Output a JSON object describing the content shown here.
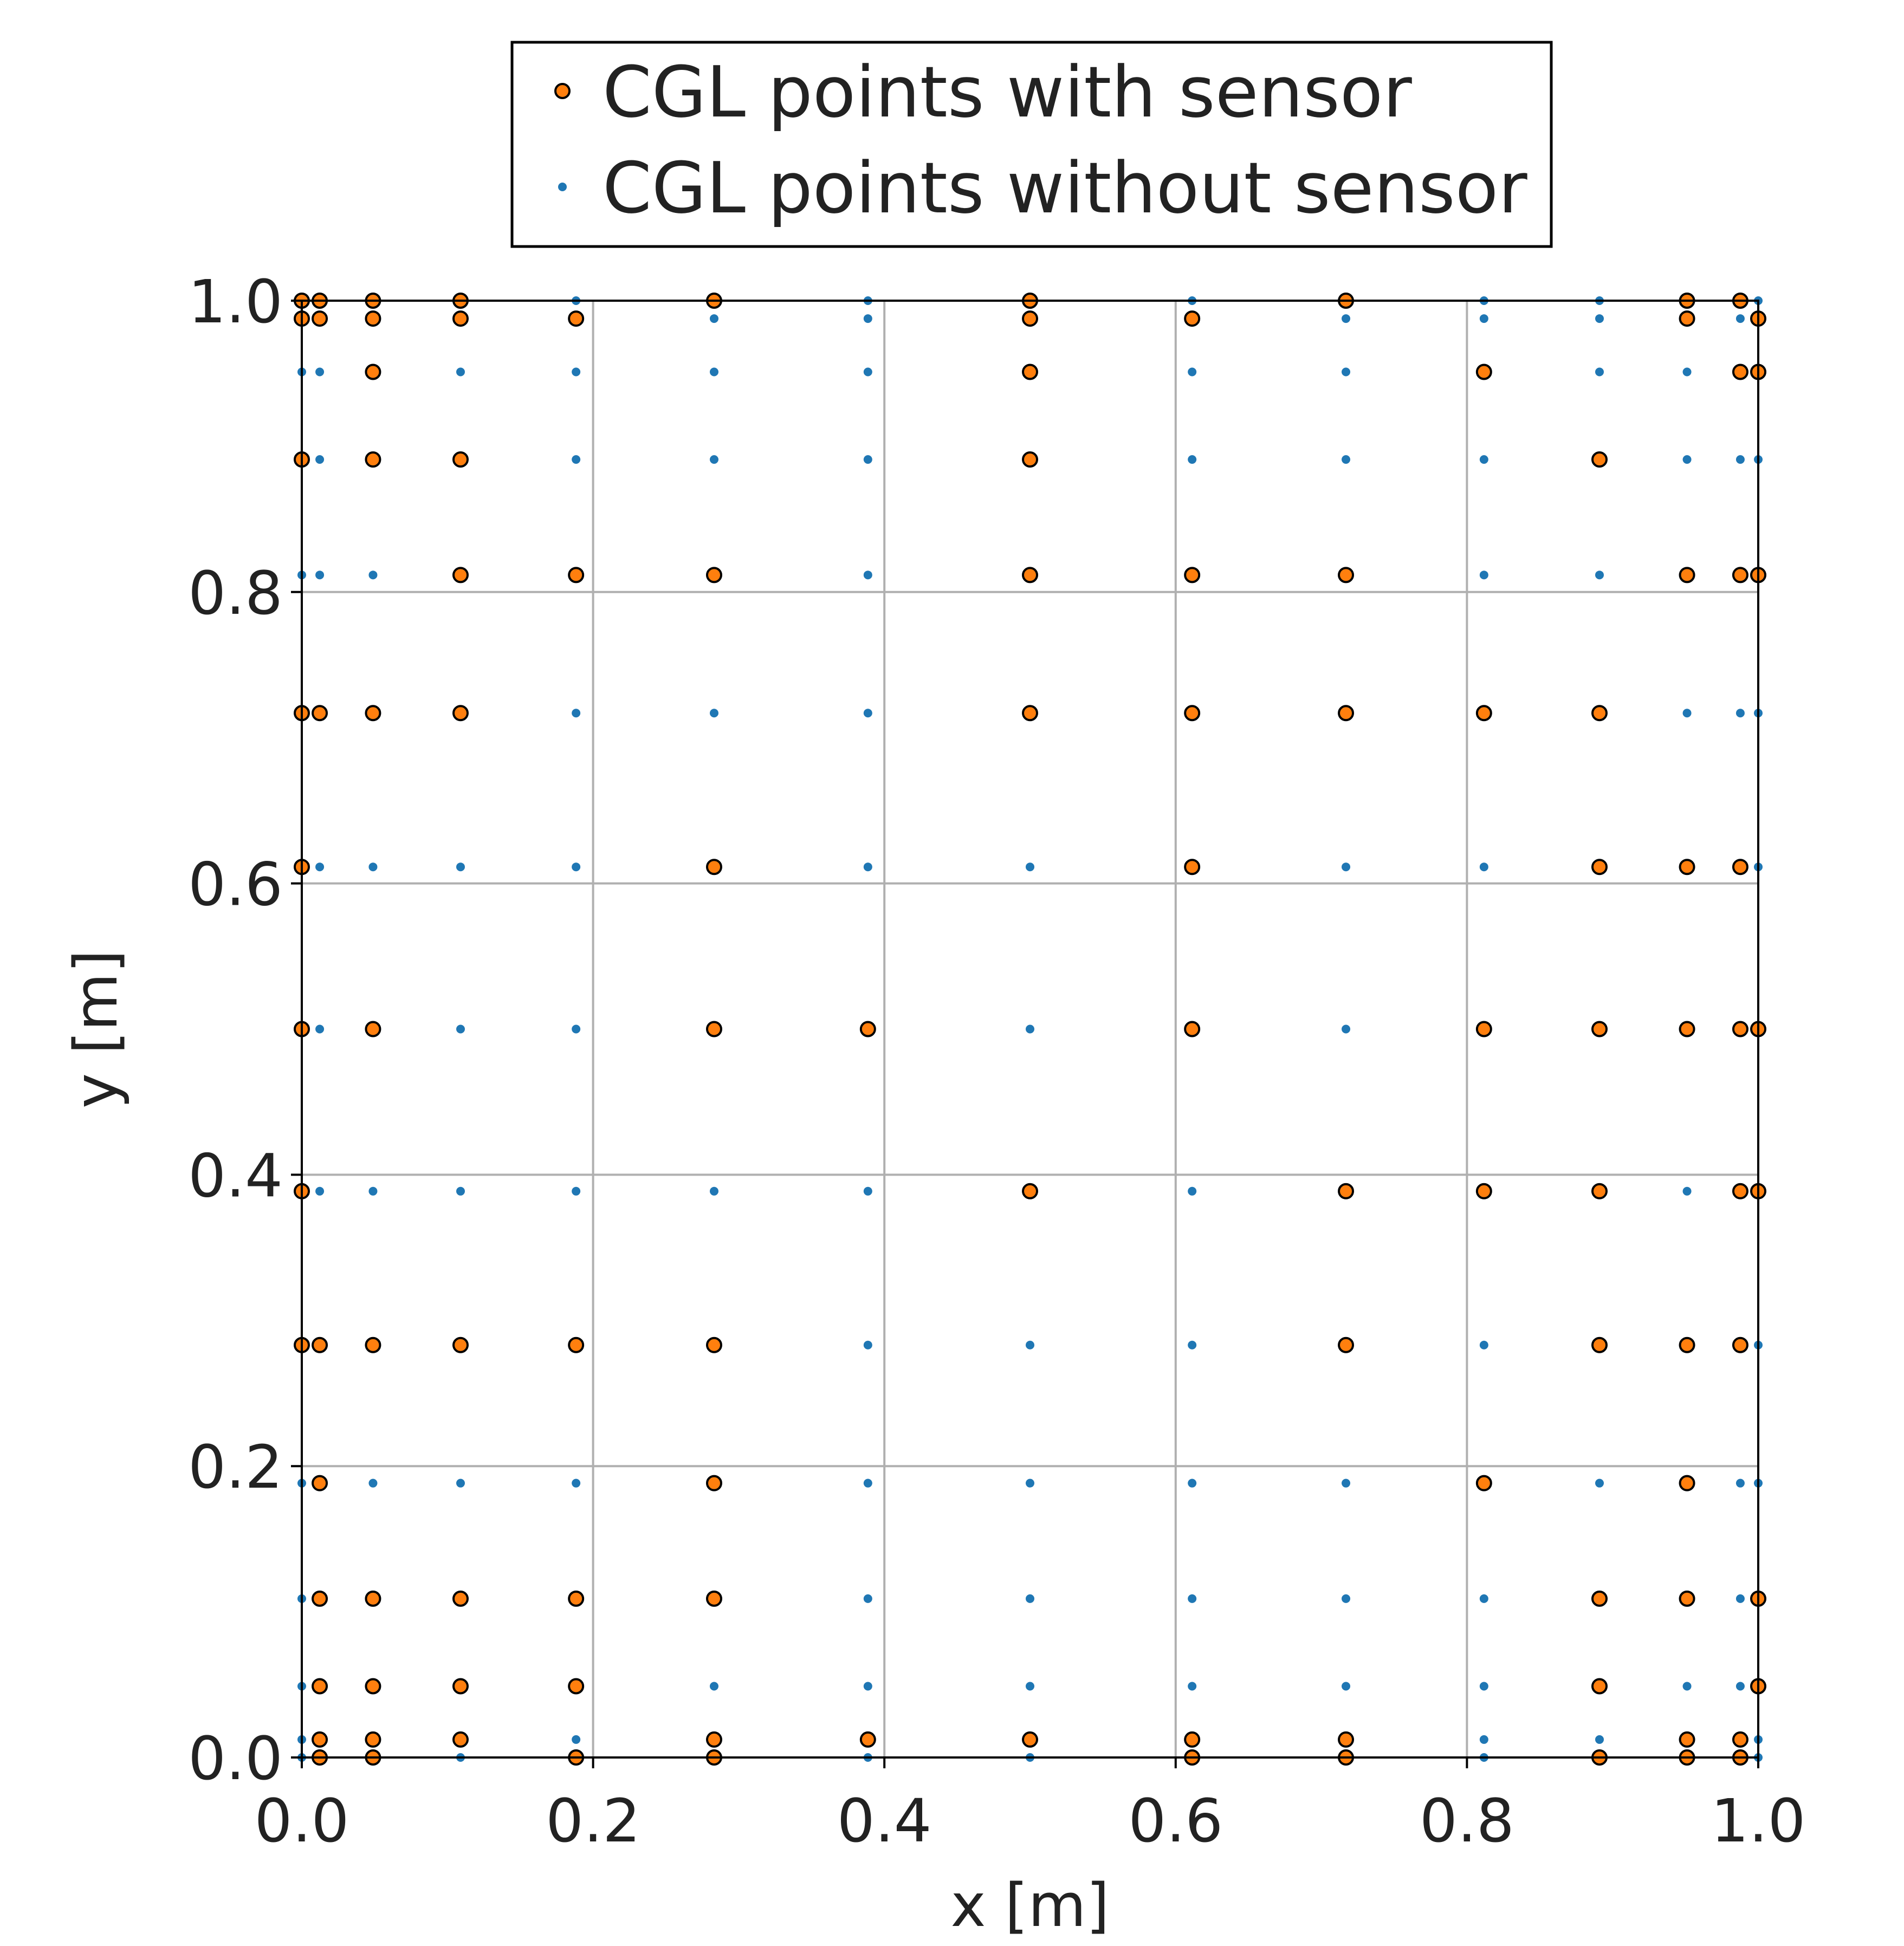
{
  "chart_data": {
    "type": "scatter",
    "title": "",
    "xlabel": "x [m]",
    "ylabel": "y [m]",
    "xlim": [
      0.0,
      1.0
    ],
    "ylim": [
      0.0,
      1.0
    ],
    "x_ticks": [
      "0.0",
      "0.2",
      "0.4",
      "0.6",
      "0.8",
      "1.0"
    ],
    "y_ticks": [
      "0.0",
      "0.2",
      "0.4",
      "0.6",
      "0.8",
      "1.0"
    ],
    "grid": true,
    "legend_position": "top-center, above plot",
    "cgl_nodes": [
      0.0,
      0.0123,
      0.0489,
      0.109,
      0.1883,
      0.2831,
      0.3887,
      0.5,
      0.6113,
      0.7169,
      0.8117,
      0.891,
      0.9511,
      0.9877,
      1.0
    ],
    "series": [
      {
        "name": "CGL points with sensor",
        "marker": "circle",
        "color": "#ff7f0e",
        "edge_color": "#000000",
        "sensor_mask": [
          [
            1,
            1,
            1,
            1,
            0,
            1,
            0,
            1,
            0,
            1,
            0,
            0,
            1,
            1,
            0
          ],
          [
            1,
            1,
            1,
            1,
            1,
            0,
            0,
            1,
            1,
            0,
            0,
            0,
            1,
            0,
            1
          ],
          [
            0,
            0,
            1,
            0,
            0,
            0,
            0,
            1,
            0,
            0,
            1,
            0,
            0,
            1,
            1
          ],
          [
            1,
            0,
            1,
            1,
            0,
            0,
            0,
            1,
            0,
            0,
            0,
            1,
            0,
            0,
            0
          ],
          [
            0,
            0,
            0,
            1,
            1,
            1,
            0,
            1,
            1,
            1,
            0,
            0,
            1,
            1,
            1
          ],
          [
            1,
            1,
            1,
            1,
            0,
            0,
            0,
            1,
            1,
            1,
            1,
            1,
            0,
            0,
            0
          ],
          [
            1,
            0,
            0,
            0,
            0,
            1,
            0,
            0,
            1,
            0,
            0,
            1,
            1,
            1,
            0
          ],
          [
            1,
            0,
            1,
            0,
            0,
            1,
            1,
            0,
            1,
            0,
            1,
            1,
            1,
            1,
            1
          ],
          [
            1,
            0,
            0,
            0,
            0,
            0,
            0,
            1,
            0,
            1,
            1,
            1,
            0,
            1,
            1
          ],
          [
            1,
            1,
            1,
            1,
            1,
            1,
            0,
            0,
            0,
            1,
            0,
            1,
            1,
            1,
            0
          ],
          [
            0,
            1,
            0,
            0,
            0,
            1,
            0,
            0,
            0,
            0,
            1,
            0,
            1,
            0,
            0
          ],
          [
            0,
            1,
            1,
            1,
            1,
            1,
            0,
            0,
            0,
            0,
            0,
            1,
            1,
            0,
            1
          ],
          [
            0,
            1,
            1,
            1,
            1,
            0,
            0,
            0,
            0,
            0,
            0,
            1,
            0,
            0,
            1
          ],
          [
            0,
            1,
            1,
            1,
            0,
            1,
            1,
            1,
            1,
            1,
            0,
            0,
            1,
            1,
            0
          ],
          [
            0,
            1,
            1,
            0,
            1,
            1,
            0,
            0,
            1,
            1,
            0,
            1,
            1,
            1,
            0
          ]
        ]
      },
      {
        "name": "CGL points without sensor",
        "marker": "dot",
        "color": "#1f77b4",
        "note_points": "all remaining CGL grid nodes"
      }
    ]
  }
}
